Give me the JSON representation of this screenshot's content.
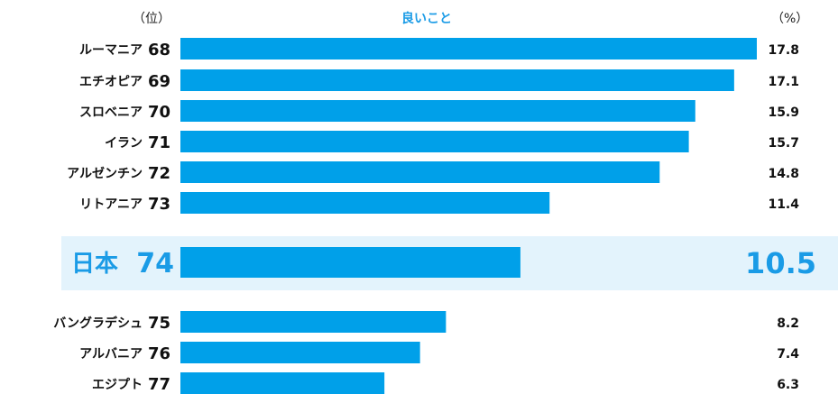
{
  "header": {
    "rank_label": "（位）",
    "title": "良いこと",
    "unit_label": "（%）"
  },
  "colors": {
    "bar": "#00a0e9",
    "highlight_bg": "#e3f3fc",
    "highlight_text": "#1a9be6"
  },
  "chart_data": {
    "type": "bar",
    "orientation": "horizontal",
    "title": "良いこと",
    "unit": "%",
    "xlim": [
      0,
      17.8
    ],
    "highlight_country": "日本",
    "categories": [
      "ルーマニア",
      "エチオピア",
      "スロベニア",
      "イラン",
      "アルゼンチン",
      "リトアニア",
      "日本",
      "バングラデシュ",
      "アルバニア",
      "エジプト"
    ],
    "ranks": [
      68,
      69,
      70,
      71,
      72,
      73,
      74,
      75,
      76,
      77
    ],
    "values": [
      17.8,
      17.1,
      15.9,
      15.7,
      14.8,
      11.4,
      10.5,
      8.2,
      7.4,
      6.3
    ],
    "value_labels": [
      "17.8",
      "17.1",
      "15.9",
      "15.7",
      "14.8",
      "11.4",
      "10.5",
      "8.2",
      "7.4",
      "6.3"
    ]
  }
}
